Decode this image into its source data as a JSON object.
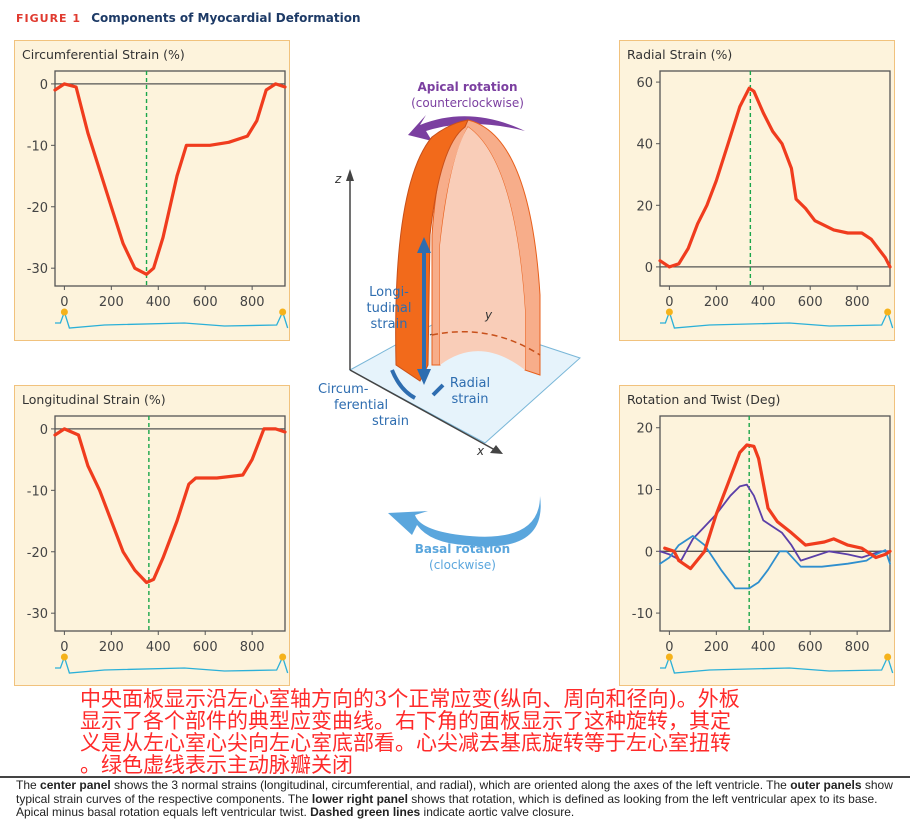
{
  "header": {
    "figure_label": "FIGURE 1",
    "title": "Components of Myocardial Deformation"
  },
  "center": {
    "apical_title": "Apical rotation",
    "apical_sub": "(counterclockwise)",
    "basal_title": "Basal rotation",
    "basal_sub": "(clockwise)",
    "longitudinal": [
      "Longi-",
      "tudinal",
      "strain"
    ],
    "circumferential": [
      "Circum-",
      "ferential",
      "strain"
    ],
    "radial": [
      "Radial",
      "strain"
    ],
    "axis_z": "z",
    "axis_y": "y",
    "axis_x": "x",
    "colors": {
      "apical": "#7b3fa0",
      "basal": "#5aa6dd",
      "strain_text": "#2e6db0",
      "wall": "#f26a1b"
    }
  },
  "chart_data": [
    {
      "type": "line",
      "title": "Circumferential Strain (%)",
      "xlim": [
        -40,
        940
      ],
      "ylim": [
        -32.9,
        2.1
      ],
      "xticks": [
        0,
        200,
        400,
        600,
        800
      ],
      "yticks": [
        0,
        -10,
        -20,
        -30
      ],
      "aortic_valve_closure": 350,
      "series": [
        {
          "color": "#f03c1e",
          "points": [
            [
              -40,
              -1
            ],
            [
              0,
              0
            ],
            [
              50,
              -0.5
            ],
            [
              100,
              -8
            ],
            [
              150,
              -14
            ],
            [
              200,
              -20
            ],
            [
              250,
              -26
            ],
            [
              300,
              -30
            ],
            [
              350,
              -31
            ],
            [
              380,
              -30
            ],
            [
              420,
              -25
            ],
            [
              480,
              -15
            ],
            [
              520,
              -10
            ],
            [
              560,
              -10
            ],
            [
              620,
              -10
            ],
            [
              700,
              -9.5
            ],
            [
              780,
              -8.5
            ],
            [
              820,
              -6
            ],
            [
              860,
              -1
            ],
            [
              900,
              0
            ],
            [
              940,
              -0.5
            ]
          ]
        }
      ]
    },
    {
      "type": "line",
      "title": "Radial Strain (%)",
      "xlim": [
        -40,
        940
      ],
      "ylim": [
        -6.2,
        63.6
      ],
      "xticks": [
        0,
        200,
        400,
        600,
        800
      ],
      "yticks": [
        60,
        40,
        20,
        0
      ],
      "aortic_valve_closure": 345,
      "series": [
        {
          "color": "#f03c1e",
          "points": [
            [
              -40,
              2
            ],
            [
              0,
              0
            ],
            [
              40,
              1
            ],
            [
              80,
              6
            ],
            [
              120,
              14
            ],
            [
              160,
              20
            ],
            [
              200,
              28
            ],
            [
              250,
              40
            ],
            [
              300,
              52
            ],
            [
              340,
              58
            ],
            [
              360,
              57
            ],
            [
              400,
              50
            ],
            [
              440,
              44
            ],
            [
              480,
              40
            ],
            [
              520,
              32
            ],
            [
              540,
              22
            ],
            [
              580,
              19
            ],
            [
              620,
              15
            ],
            [
              700,
              12
            ],
            [
              760,
              11
            ],
            [
              820,
              11
            ],
            [
              860,
              9
            ],
            [
              920,
              3
            ],
            [
              940,
              0
            ]
          ]
        }
      ]
    },
    {
      "type": "line",
      "title": "Longitudinal Strain (%)",
      "xlim": [
        -40,
        940
      ],
      "ylim": [
        -32.9,
        2.1
      ],
      "xticks": [
        0,
        200,
        400,
        600,
        800
      ],
      "yticks": [
        0,
        -10,
        -20,
        -30
      ],
      "aortic_valve_closure": 360,
      "series": [
        {
          "color": "#f03c1e",
          "points": [
            [
              -40,
              -1
            ],
            [
              0,
              0
            ],
            [
              60,
              -1
            ],
            [
              100,
              -6
            ],
            [
              150,
              -10
            ],
            [
              200,
              -15
            ],
            [
              250,
              -20
            ],
            [
              300,
              -23
            ],
            [
              350,
              -25
            ],
            [
              380,
              -24.5
            ],
            [
              420,
              -21
            ],
            [
              480,
              -15
            ],
            [
              530,
              -9
            ],
            [
              560,
              -8
            ],
            [
              650,
              -8
            ],
            [
              760,
              -7.5
            ],
            [
              800,
              -5
            ],
            [
              850,
              0
            ],
            [
              900,
              0
            ],
            [
              940,
              -0.5
            ]
          ]
        }
      ]
    },
    {
      "type": "line",
      "title": "Rotation and Twist (Deg)",
      "xlim": [
        -40,
        940
      ],
      "ylim": [
        -12.9,
        21.9
      ],
      "xticks": [
        0,
        200,
        400,
        600,
        800
      ],
      "yticks": [
        20,
        10,
        0,
        -10
      ],
      "aortic_valve_closure": 340,
      "series": [
        {
          "color": "#5b3fa8",
          "points": [
            [
              -40,
              0
            ],
            [
              0,
              -0.5
            ],
            [
              50,
              -1.5
            ],
            [
              100,
              2
            ],
            [
              150,
              4
            ],
            [
              200,
              6
            ],
            [
              260,
              9
            ],
            [
              300,
              10.5
            ],
            [
              330,
              10.8
            ],
            [
              360,
              9
            ],
            [
              400,
              5
            ],
            [
              440,
              4
            ],
            [
              480,
              3
            ],
            [
              520,
              1
            ],
            [
              560,
              -1.5
            ],
            [
              600,
              -1
            ],
            [
              680,
              0
            ],
            [
              760,
              -0.5
            ],
            [
              820,
              -1
            ],
            [
              900,
              0
            ],
            [
              940,
              0
            ]
          ]
        },
        {
          "color": "#2f8fce",
          "points": [
            [
              -40,
              -2
            ],
            [
              0,
              -1
            ],
            [
              40,
              1
            ],
            [
              100,
              2.5
            ],
            [
              150,
              1
            ],
            [
              220,
              -3
            ],
            [
              280,
              -6
            ],
            [
              340,
              -6
            ],
            [
              380,
              -5
            ],
            [
              420,
              -3
            ],
            [
              470,
              0
            ],
            [
              500,
              0
            ],
            [
              560,
              -2.5
            ],
            [
              650,
              -2.5
            ],
            [
              760,
              -2
            ],
            [
              840,
              -1.5
            ],
            [
              880,
              -0.5
            ],
            [
              920,
              0.2
            ],
            [
              940,
              -2
            ]
          ]
        },
        {
          "color": "#f03c1e",
          "points": [
            [
              -20,
              0.5
            ],
            [
              20,
              0
            ],
            [
              40,
              -1.5
            ],
            [
              90,
              -2.8
            ],
            [
              150,
              0
            ],
            [
              200,
              6
            ],
            [
              250,
              11
            ],
            [
              300,
              16
            ],
            [
              330,
              17.2
            ],
            [
              360,
              17
            ],
            [
              380,
              15
            ],
            [
              420,
              7
            ],
            [
              460,
              4.8
            ],
            [
              520,
              3
            ],
            [
              580,
              1
            ],
            [
              660,
              1.5
            ],
            [
              700,
              2
            ],
            [
              760,
              1
            ],
            [
              820,
              0.5
            ],
            [
              880,
              -1
            ],
            [
              920,
              -0.5
            ],
            [
              940,
              0
            ]
          ]
        }
      ]
    }
  ],
  "caption": {
    "p1": "The ",
    "b1": "center panel",
    "p2": " shows the 3 normal strains (longitudinal, circumferential, and radial), which are oriented along the axes of the left ventricle. The ",
    "b2": "outer panels",
    "p3": " show typical strain curves of the respective components. The ",
    "b3": "lower right panel",
    "p4": " shows that rotation, which is defined as looking from the left ventricular apex to its base. Apical minus basal rotation equals left ventricular twist. ",
    "b4": "Dashed green lines",
    "p5": " indicate aortic valve closure."
  },
  "overlay_translation": [
    "中央面板显示沿左心室轴方向的3个正常应变(纵向、周向和径向)。外板",
    "显示了各个部件的典型应变曲线。右下角的面板显示了这种旋转，其定",
    "义是从左心室心尖向左心室底部看。心尖减去基底旋转等于左心室扭转",
    "。绿色虚线表示主动脉瓣关闭"
  ]
}
